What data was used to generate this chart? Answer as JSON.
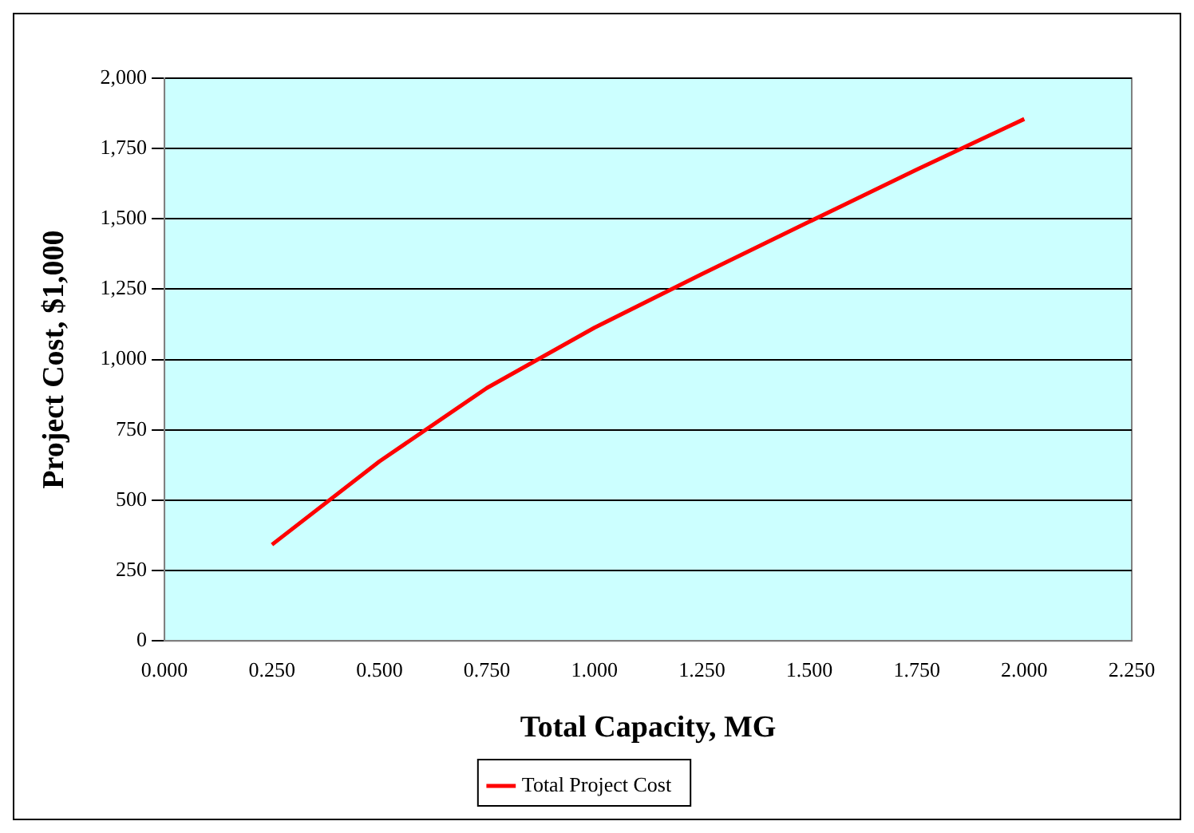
{
  "chart_data": {
    "type": "line",
    "xlabel": "Total Capacity, MG",
    "ylabel": "Project Cost, $1,000",
    "x": [
      0.25,
      0.5,
      0.75,
      1.0,
      1.25,
      1.5,
      1.75,
      2.0
    ],
    "series": [
      {
        "name": "Total Project Cost",
        "color": "#ff0000",
        "values": [
          342,
          638,
          899,
          1113,
          1304,
          1490,
          1675,
          1855
        ]
      }
    ],
    "xlim": [
      0,
      2.25
    ],
    "xticks": [
      {
        "value": 0,
        "label": "0.000"
      },
      {
        "value": 0.25,
        "label": "0.250"
      },
      {
        "value": 0.5,
        "label": "0.500"
      },
      {
        "value": 0.75,
        "label": "0.750"
      },
      {
        "value": 1,
        "label": "1.000"
      },
      {
        "value": 1.25,
        "label": "1.250"
      },
      {
        "value": 1.5,
        "label": "1.500"
      },
      {
        "value": 1.75,
        "label": "1.750"
      },
      {
        "value": 2,
        "label": "2.000"
      },
      {
        "value": 2.25,
        "label": "2.250"
      }
    ],
    "ylim": [
      0,
      2000
    ],
    "yticks": [
      0,
      250,
      500,
      750,
      {
        "value": 1000,
        "label": "1,000"
      },
      {
        "value": 1250,
        "label": "1,250"
      },
      {
        "value": 1500,
        "label": "1,500"
      },
      {
        "value": 1750,
        "label": "1,750"
      },
      {
        "value": 2000,
        "label": "2,000"
      }
    ],
    "grid": "y",
    "legend": "bottom",
    "marker": "none",
    "line_style": "solid"
  }
}
